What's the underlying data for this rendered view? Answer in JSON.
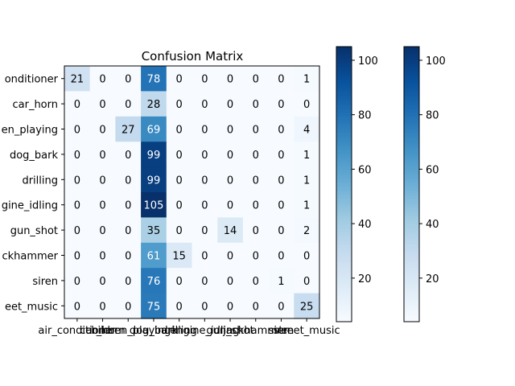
{
  "chart_data": {
    "type": "heatmap",
    "title": "Confusion Matrix",
    "xlabel": "",
    "ylabel": "",
    "row_tick_labels": [
      "onditioner",
      "car_horn",
      "en_playing",
      "dog_bark",
      "drilling",
      "gine_idling",
      "gun_shot",
      "ckhammer",
      "siren",
      "eet_music"
    ],
    "col_tick_labels": [
      "air_conditioner",
      "car_horn",
      "children_playing",
      "dog_bark",
      "drilling",
      "engine_idling",
      "gun_shot",
      "jackhammer",
      "siren",
      "street_music"
    ],
    "matrix": [
      [
        21,
        0,
        0,
        78,
        0,
        0,
        0,
        0,
        0,
        1
      ],
      [
        0,
        0,
        0,
        28,
        0,
        0,
        0,
        0,
        0,
        0
      ],
      [
        0,
        0,
        27,
        69,
        0,
        0,
        0,
        0,
        0,
        4
      ],
      [
        0,
        0,
        0,
        99,
        0,
        0,
        0,
        0,
        0,
        1
      ],
      [
        0,
        0,
        0,
        99,
        0,
        0,
        0,
        0,
        0,
        1
      ],
      [
        0,
        0,
        0,
        105,
        0,
        0,
        0,
        0,
        0,
        1
      ],
      [
        0,
        0,
        0,
        35,
        0,
        0,
        14,
        0,
        0,
        2
      ],
      [
        0,
        0,
        0,
        61,
        15,
        0,
        0,
        0,
        0,
        0
      ],
      [
        0,
        0,
        0,
        76,
        0,
        0,
        0,
        0,
        1,
        0
      ],
      [
        0,
        0,
        0,
        75,
        0,
        0,
        0,
        0,
        0,
        25
      ]
    ],
    "colormap": "Blues",
    "color_range": [
      0,
      105
    ],
    "colorbars": [
      {
        "ticks": [
          20,
          40,
          60,
          80,
          100
        ],
        "range": [
          4,
          105
        ]
      },
      {
        "ticks": [
          20,
          40,
          60,
          80,
          100
        ],
        "range": [
          4,
          105
        ]
      }
    ],
    "text_color_light": "#ffffff",
    "text_color_dark": "#000000"
  }
}
